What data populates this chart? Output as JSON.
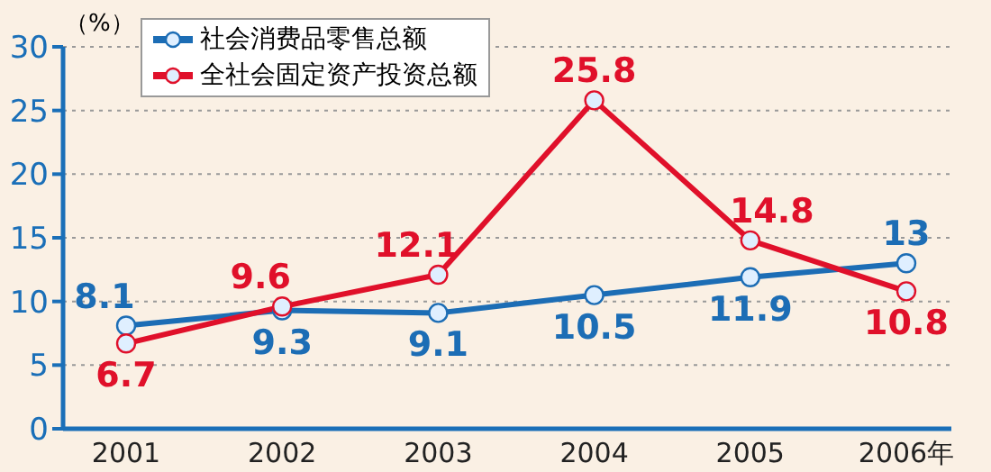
{
  "chart_data": {
    "type": "line",
    "ylabel": "（%）",
    "categories": [
      "2001",
      "2002",
      "2003",
      "2004",
      "2005",
      "2006年"
    ],
    "series": [
      {
        "name": "社会消费品零售总额",
        "color": "#1c6db5",
        "values": [
          8.1,
          9.3,
          9.1,
          10.5,
          11.9,
          13
        ]
      },
      {
        "name": "全社会固定资产投资总额",
        "color": "#e0102a",
        "values": [
          6.7,
          9.6,
          12.1,
          25.8,
          14.8,
          10.8
        ]
      }
    ],
    "ylim": [
      0,
      30
    ],
    "yticks": [
      0,
      5,
      10,
      15,
      20,
      25,
      30
    ],
    "grid": "y",
    "legend": "top left",
    "marker": "circle",
    "line_style": "solid",
    "data_labels": true
  }
}
